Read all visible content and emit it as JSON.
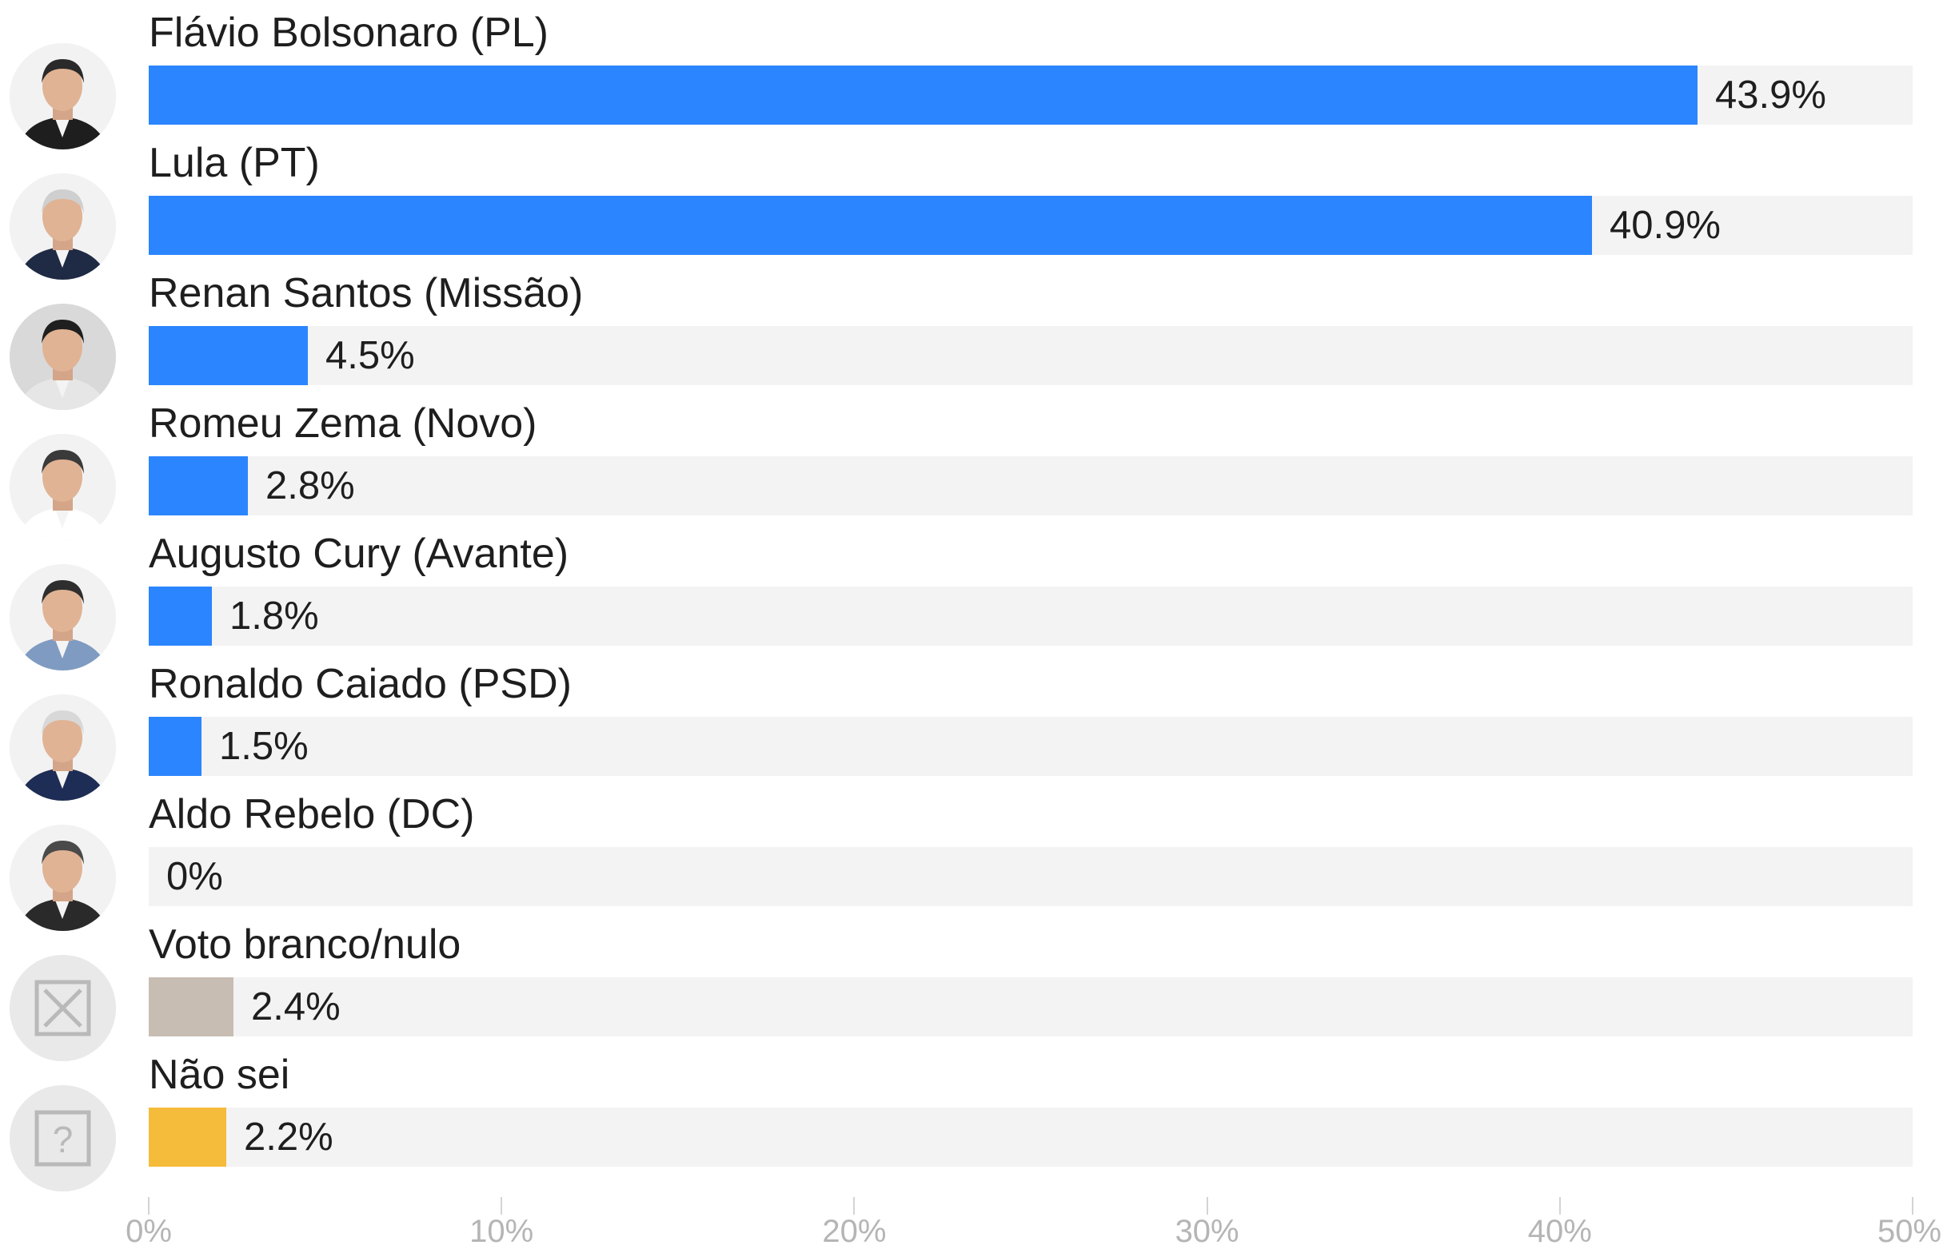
{
  "chart_data": {
    "type": "bar",
    "orientation": "horizontal",
    "xlim": [
      0,
      50
    ],
    "grid": false,
    "x_ticks": [
      "0%",
      "10%",
      "20%",
      "30%",
      "40%",
      "50%"
    ],
    "colors": {
      "candidate": "#2a85ff",
      "blank_null": "#c8bdb3",
      "dont_know": "#f5bb3b",
      "track": "#f3f3f3"
    },
    "rows": [
      {
        "label": "Flávio Bolsonaro (PL)",
        "value": 43.9,
        "value_label": "43.9%",
        "color": "#2a85ff",
        "icon": "candidate-photo"
      },
      {
        "label": "Lula (PT)",
        "value": 40.9,
        "value_label": "40.9%",
        "color": "#2a85ff",
        "icon": "candidate-photo"
      },
      {
        "label": "Renan Santos (Missão)",
        "value": 4.5,
        "value_label": "4.5%",
        "color": "#2a85ff",
        "icon": "candidate-photo"
      },
      {
        "label": "Romeu Zema (Novo)",
        "value": 2.8,
        "value_label": "2.8%",
        "color": "#2a85ff",
        "icon": "candidate-photo"
      },
      {
        "label": "Augusto Cury (Avante)",
        "value": 1.8,
        "value_label": "1.8%",
        "color": "#2a85ff",
        "icon": "candidate-photo"
      },
      {
        "label": "Ronaldo Caiado (PSD)",
        "value": 1.5,
        "value_label": "1.5%",
        "color": "#2a85ff",
        "icon": "candidate-photo"
      },
      {
        "label": "Aldo Rebelo (DC)",
        "value": 0,
        "value_label": "0%",
        "color": "#2a85ff",
        "icon": "candidate-photo"
      },
      {
        "label": "Voto branco/nulo",
        "value": 2.4,
        "value_label": "2.4%",
        "color": "#c8bdb3",
        "icon": "x-box-icon"
      },
      {
        "label": "Não sei",
        "value": 2.2,
        "value_label": "2.2%",
        "color": "#f5bb3b",
        "icon": "question-box-icon"
      }
    ]
  }
}
